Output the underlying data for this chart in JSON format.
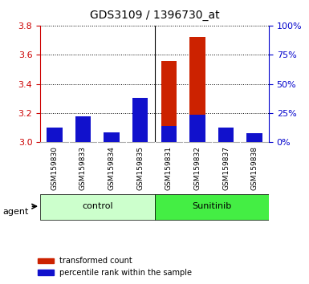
{
  "title": "GDS3109 / 1396730_at",
  "samples": [
    "GSM159830",
    "GSM159833",
    "GSM159834",
    "GSM159835",
    "GSM159831",
    "GSM159832",
    "GSM159837",
    "GSM159838"
  ],
  "red_values": [
    3.07,
    3.155,
    3.03,
    3.285,
    3.555,
    3.72,
    3.075,
    3.04
  ],
  "blue_values": [
    3.1,
    3.18,
    3.07,
    3.305,
    3.11,
    3.19,
    3.1,
    3.065
  ],
  "base_value": 3.0,
  "ylim_left": [
    3.0,
    3.8
  ],
  "ylim_right": [
    0,
    100
  ],
  "yticks_left": [
    3.0,
    3.2,
    3.4,
    3.6,
    3.8
  ],
  "yticks_right": [
    0,
    25,
    50,
    75,
    100
  ],
  "ytick_labels_right": [
    "0%",
    "25%",
    "50%",
    "75%",
    "100%"
  ],
  "left_color": "#cc0000",
  "right_color": "#0000cc",
  "bar_color_red": "#cc2200",
  "bar_color_blue": "#1111cc",
  "groups": [
    {
      "label": "control",
      "indices": [
        0,
        1,
        2,
        3
      ],
      "color": "#ccffcc"
    },
    {
      "label": "Sunitinib",
      "indices": [
        4,
        5,
        6,
        7
      ],
      "color": "#44ee44"
    }
  ],
  "agent_label": "agent",
  "legend_red": "transformed count",
  "legend_blue": "percentile rank within the sample",
  "bar_width": 0.55,
  "tick_label_bg": "#cccccc",
  "plot_bg": "#ffffff"
}
